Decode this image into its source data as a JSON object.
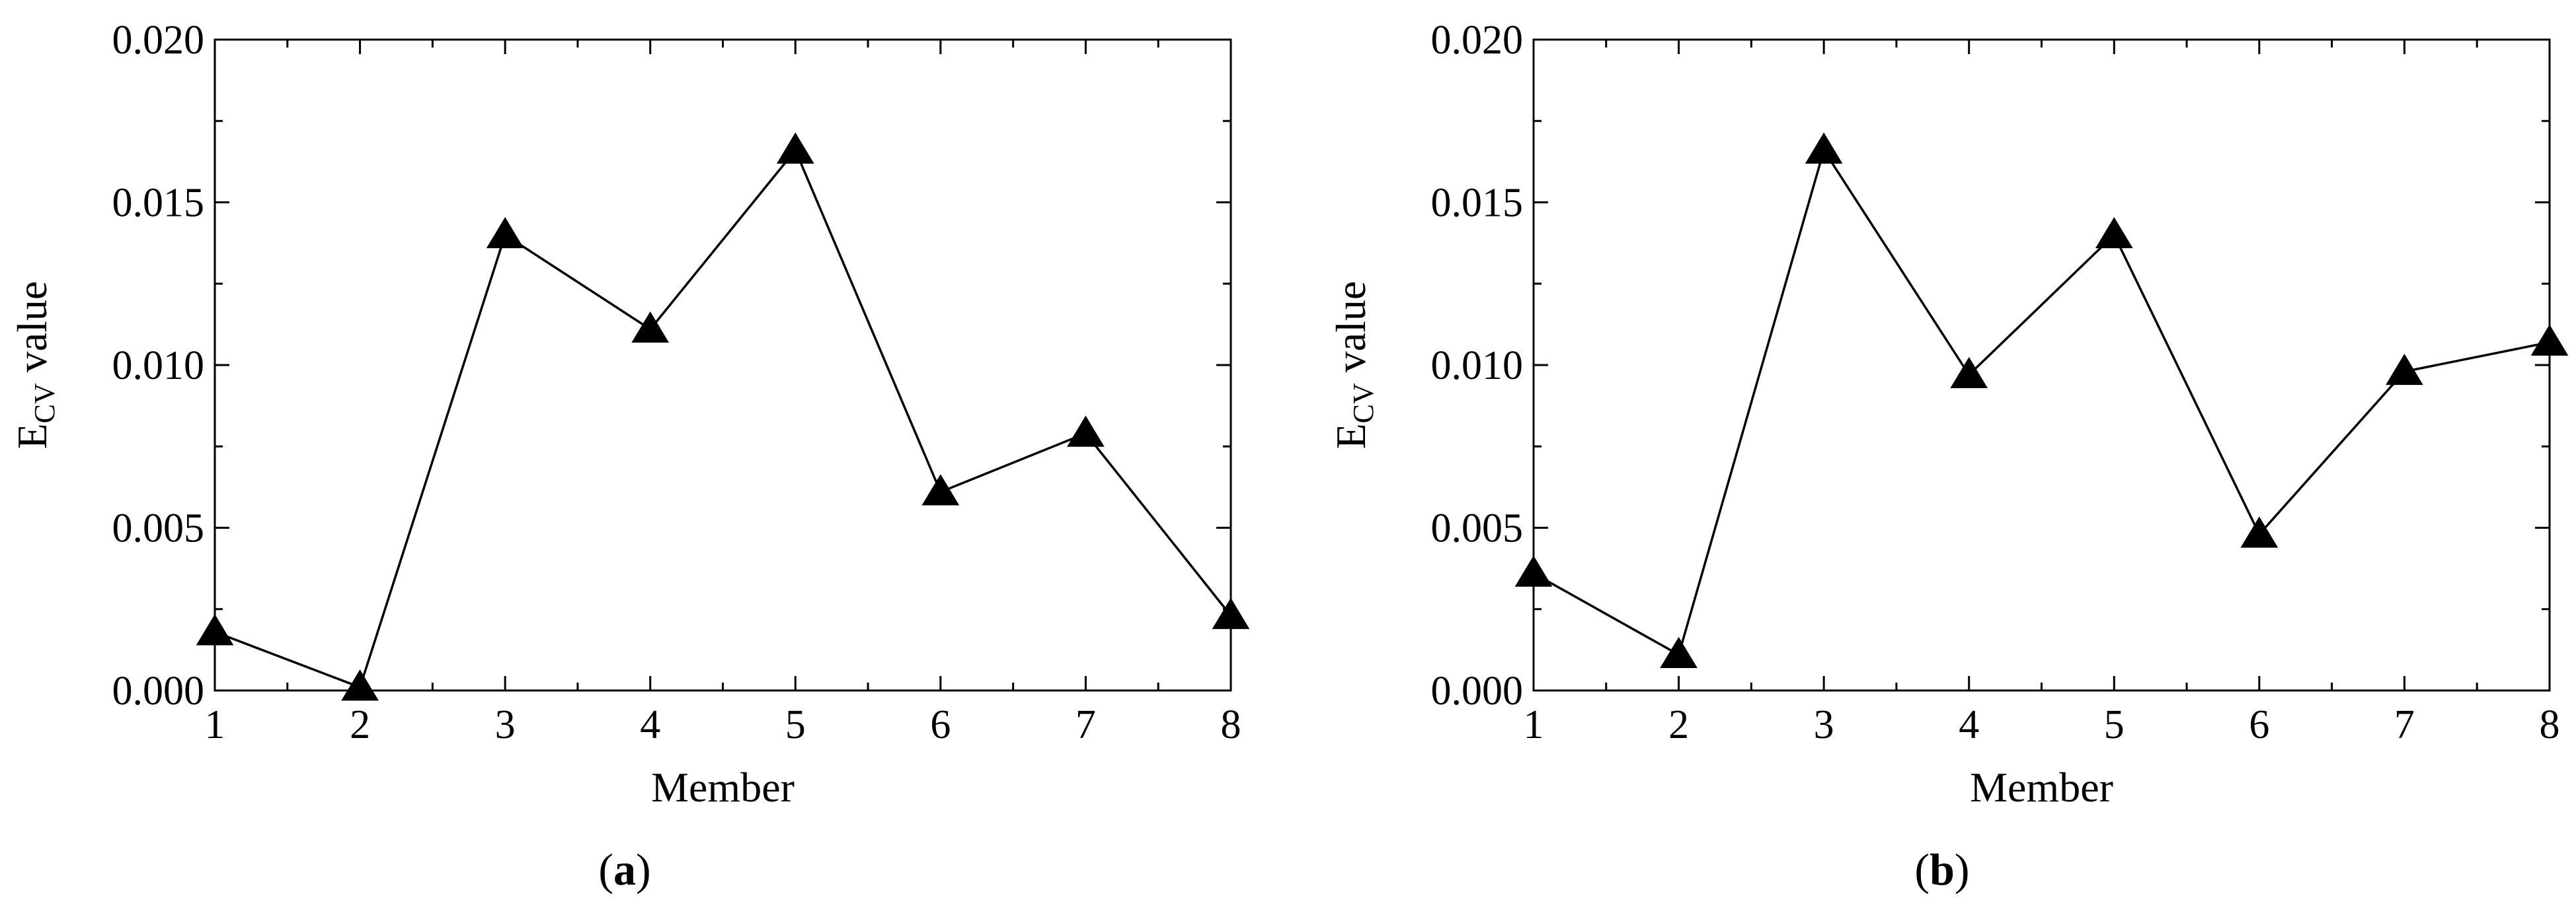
{
  "chart_data": [
    {
      "type": "line",
      "panel_label": "a",
      "xlabel": "Member",
      "ylabel": {
        "main": "E",
        "subscript": "CV",
        "suffix": " value"
      },
      "x": [
        1,
        2,
        3,
        4,
        5,
        6,
        7,
        8
      ],
      "series": [
        {
          "values": [
            0.0018,
            0.0001,
            0.014,
            0.0111,
            0.0166,
            0.0061,
            0.0079,
            0.0023
          ],
          "marker": "triangle-up",
          "color": "#000000"
        }
      ],
      "xlim": [
        1,
        8
      ],
      "ylim": [
        0,
        0.02
      ],
      "xticks": [
        "1",
        "2",
        "3",
        "4",
        "5",
        "6",
        "7",
        "8"
      ],
      "yticks": [
        "0.000",
        "0.005",
        "0.010",
        "0.015",
        "0.020"
      ],
      "grid": false
    },
    {
      "type": "line",
      "panel_label": "b",
      "xlabel": "Member",
      "ylabel": {
        "main": "E",
        "subscript": "CV",
        "suffix": " value"
      },
      "x": [
        1,
        2,
        3,
        4,
        5,
        6,
        7,
        8
      ],
      "series": [
        {
          "values": [
            0.0036,
            0.0011,
            0.0166,
            0.0097,
            0.014,
            0.0048,
            0.0098,
            0.0107
          ],
          "marker": "triangle-up",
          "color": "#000000"
        }
      ],
      "xlim": [
        1,
        8
      ],
      "ylim": [
        0,
        0.02
      ],
      "xticks": [
        "1",
        "2",
        "3",
        "4",
        "5",
        "6",
        "7",
        "8"
      ],
      "yticks": [
        "0.000",
        "0.005",
        "0.010",
        "0.015",
        "0.020"
      ],
      "grid": false
    }
  ]
}
